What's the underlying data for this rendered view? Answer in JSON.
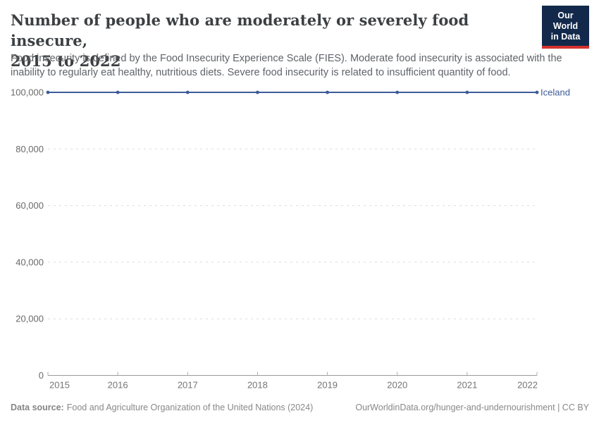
{
  "header": {
    "title_line1": "Number of people who are moderately or severely food insecure,",
    "title_line2": "2015 to 2022",
    "subtitle": "Food insecurity is defined by the Food Insecurity Experience Scale (FIES). Moderate food insecurity is associated with the inability to regularly eat healthy, nutritious diets. Severe food insecurity is related to insufficient quantity of food.",
    "logo": {
      "line1": "Our World",
      "line2": "in Data",
      "background": "#12294b",
      "stripe": "#d5332e"
    }
  },
  "chart_data": {
    "type": "line",
    "title": "Number of people who are moderately or severely food insecure, 2015 to 2022",
    "x": [
      2015,
      2016,
      2017,
      2018,
      2019,
      2020,
      2021,
      2022
    ],
    "series": [
      {
        "name": "Iceland",
        "values": [
          100000,
          100000,
          100000,
          100000,
          100000,
          100000,
          100000,
          100000
        ],
        "color": "#3d5b99"
      }
    ],
    "xlabel": "",
    "ylabel": "",
    "ylim": [
      0,
      100000
    ],
    "yticks": [
      0,
      20000,
      40000,
      60000,
      80000,
      100000
    ],
    "grid": true,
    "grid_style": "dashed",
    "legend_position": "end-of-line-label",
    "marker": "dot"
  },
  "footer": {
    "datasource_label": "Data source:",
    "datasource_text": "Food and Agriculture Organization of the United Nations (2024)",
    "link_text": "OurWorldinData.org/hunger-and-undernourishment | CC BY"
  }
}
